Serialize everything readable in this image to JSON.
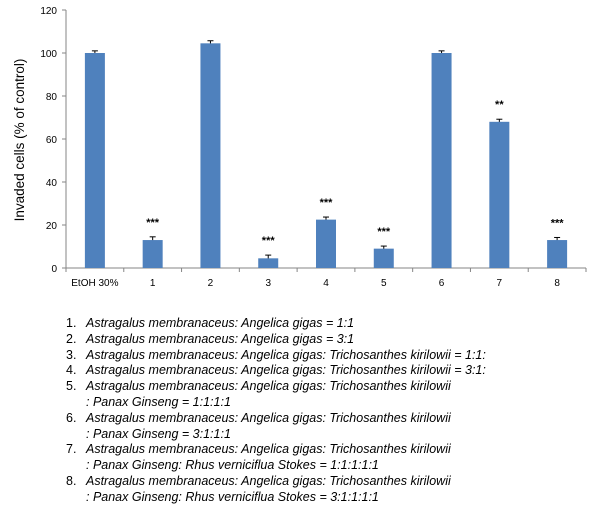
{
  "chart_data": {
    "type": "bar",
    "ylabel": "Invaded cells (% of control)",
    "ylim": [
      0,
      120
    ],
    "yticks": [
      0,
      20,
      40,
      60,
      80,
      100,
      120
    ],
    "categories": [
      "EtOH 30%",
      "1",
      "2",
      "3",
      "4",
      "5",
      "6",
      "7",
      "8"
    ],
    "values": [
      100,
      13,
      104.5,
      4.5,
      22.5,
      9,
      100,
      68,
      13
    ],
    "errors": [
      1,
      1.5,
      1.2,
      1.5,
      1.2,
      1.2,
      1,
      1.2,
      1.2
    ],
    "annotations": [
      "",
      "***",
      "",
      "***",
      "***",
      "***",
      "",
      "**",
      "***"
    ],
    "bar_color": "#4F81BD",
    "grid": false
  },
  "legend": [
    {
      "num": "1.",
      "line1": "Astragalus membranaceus: Angelica gigas = 1:1",
      "line2": ""
    },
    {
      "num": "2.",
      "line1": "Astragalus membranaceus: Angelica gigas = 3:1",
      "line2": ""
    },
    {
      "num": "3.",
      "line1": "Astragalus membranaceus: Angelica gigas: Trichosanthes kirilowii = 1:1:",
      "line2": ""
    },
    {
      "num": "4.",
      "line1": "Astragalus membranaceus: Angelica gigas: Trichosanthes kirilowii = 3:1:",
      "line2": ""
    },
    {
      "num": "5.",
      "line1": "Astragalus membranaceus: Angelica gigas: Trichosanthes kirilowii",
      "line2": ": Panax Ginseng = 1:1:1:1"
    },
    {
      "num": "6.",
      "line1": "Astragalus membranaceus: Angelica gigas: Trichosanthes kirilowii",
      "line2": ": Panax Ginseng = 3:1:1:1"
    },
    {
      "num": "7.",
      "line1": "Astragalus membranaceus: Angelica gigas: Trichosanthes kirilowii",
      "line2": ": Panax Ginseng: Rhus verniciflua Stokes = 1:1:1:1:1"
    },
    {
      "num": "8.",
      "line1": "Astragalus membranaceus: Angelica gigas: Trichosanthes kirilowii",
      "line2": ": Panax Ginseng: Rhus verniciflua Stokes = 3:1:1:1:1"
    }
  ]
}
